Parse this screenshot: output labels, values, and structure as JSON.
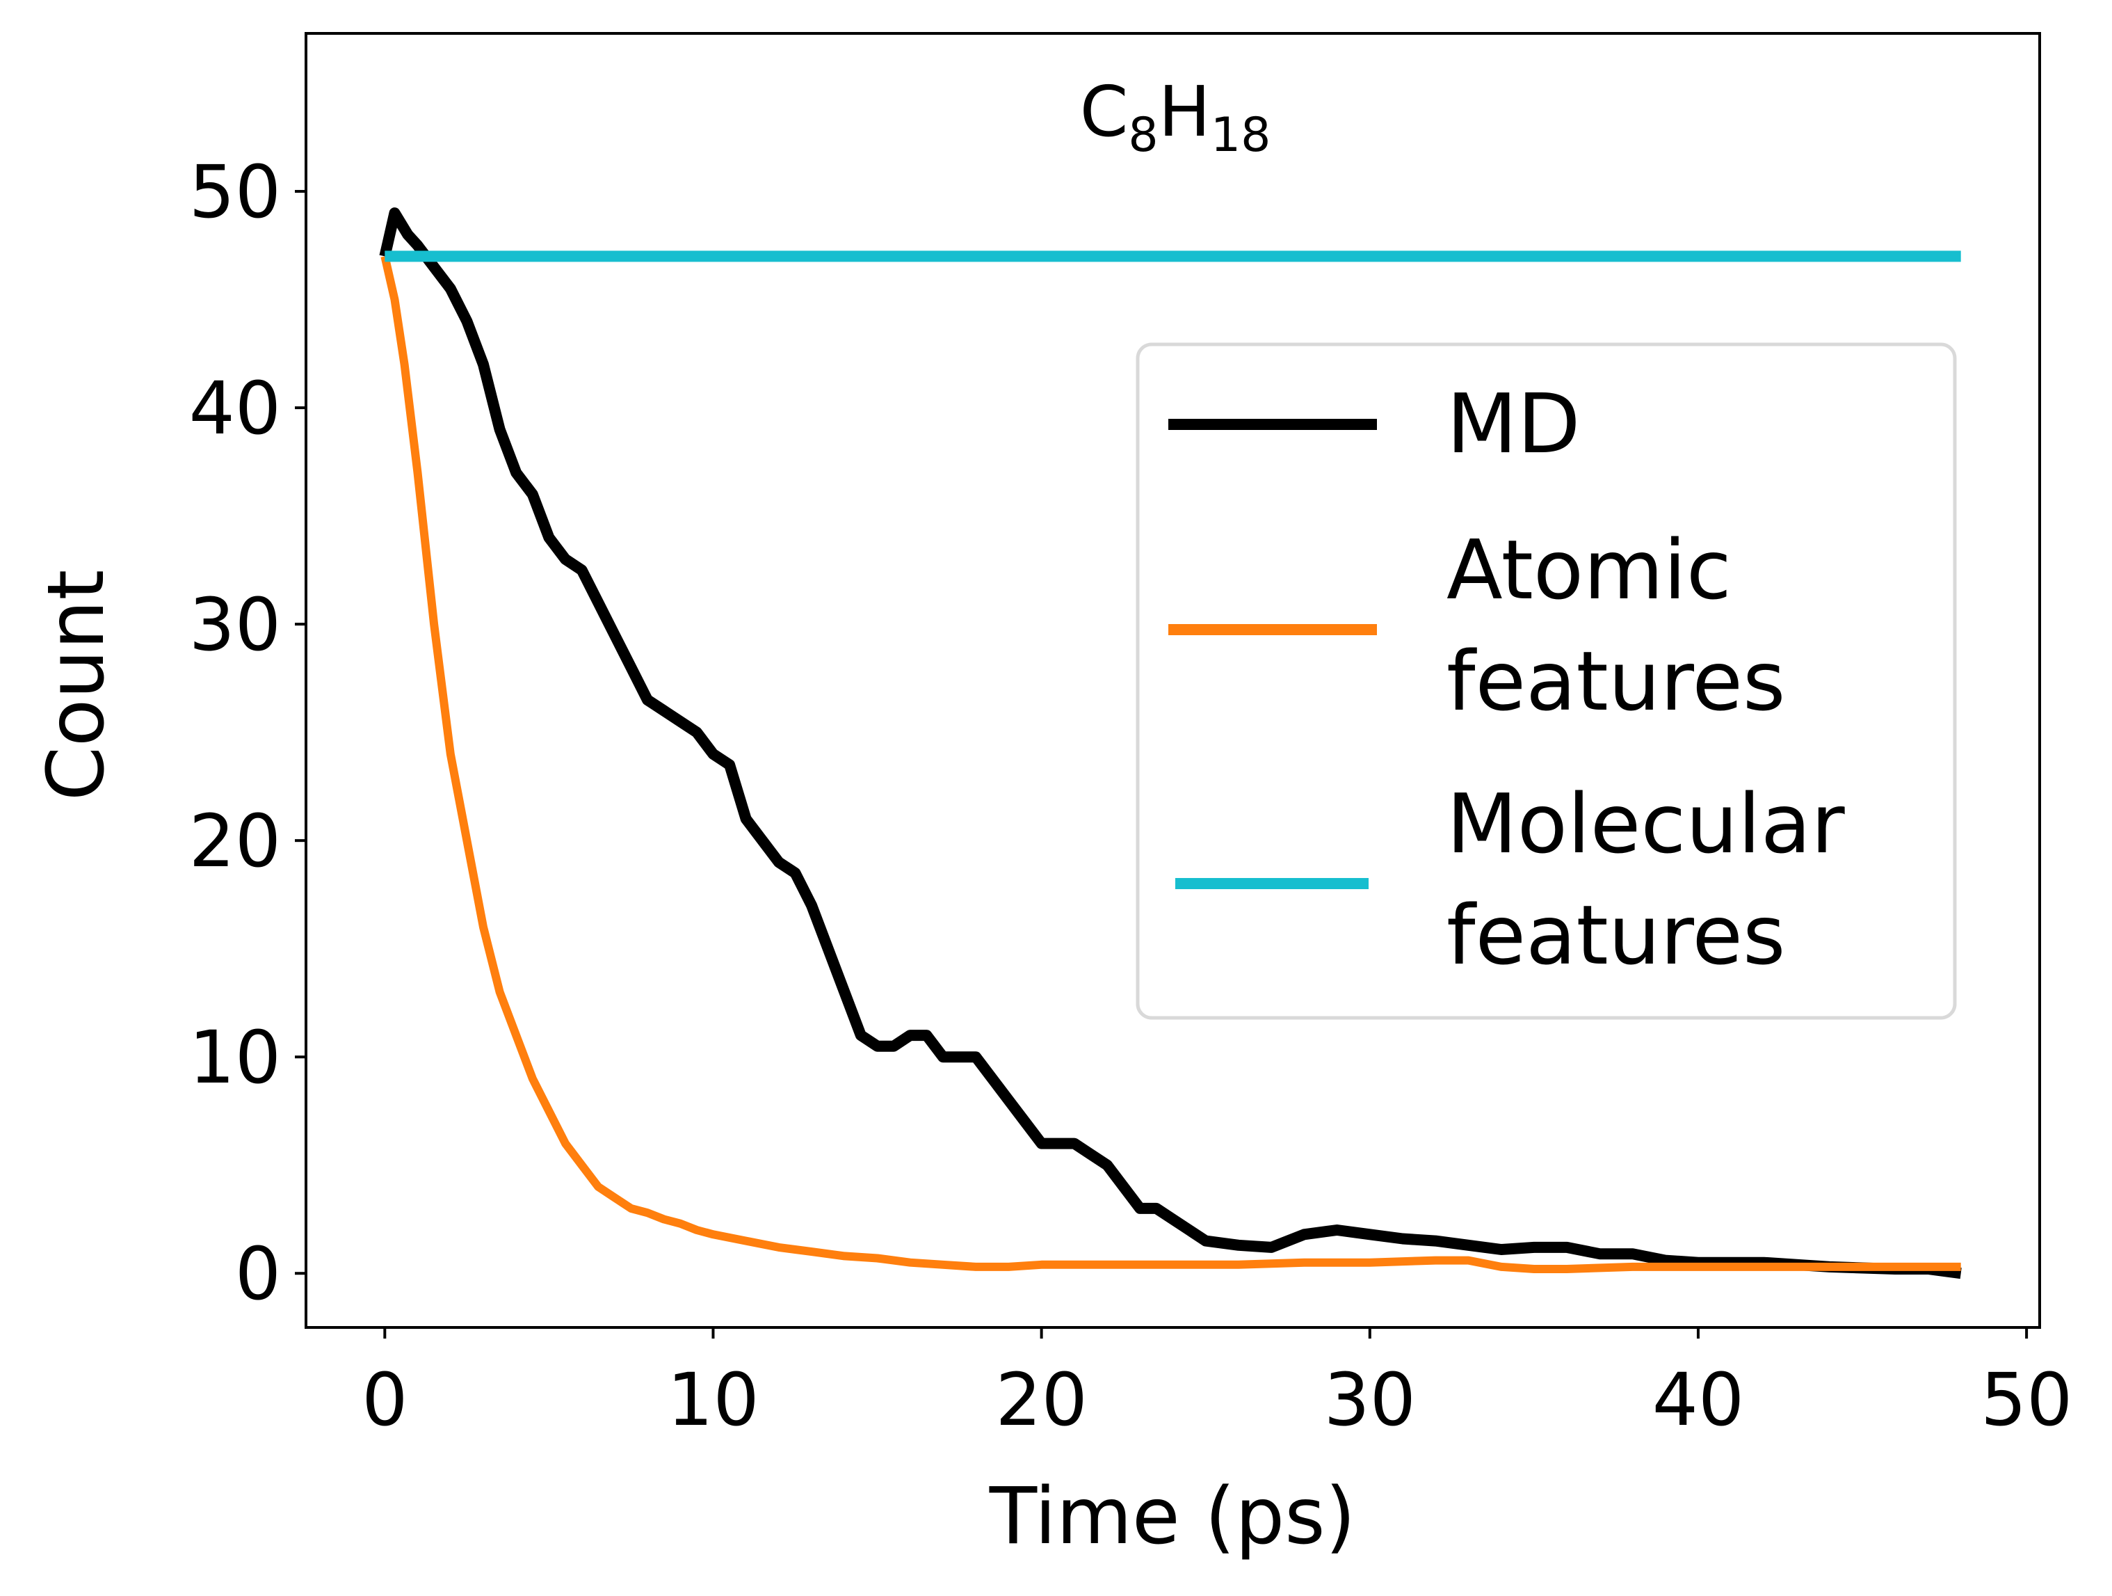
{
  "chart_data": {
    "type": "line",
    "title": "C8H18",
    "title_parts": {
      "c": "C",
      "c_sub": "8",
      "h": "H",
      "h_sub": "18"
    },
    "xlabel": "Time (ps)",
    "ylabel": "Count",
    "xlim": [
      -2.4,
      50.4
    ],
    "ylim": [
      -2.5,
      57.3
    ],
    "xticks": [
      0,
      10,
      20,
      30,
      40,
      50
    ],
    "yticks": [
      0,
      10,
      20,
      30,
      40,
      50
    ],
    "grid": false,
    "legend_position": "center-right",
    "series": [
      {
        "name": "MD",
        "color": "#000000",
        "x": [
          0,
          0.3,
          0.7,
          1.0,
          1.5,
          2.0,
          2.5,
          3.0,
          3.5,
          4.0,
          4.5,
          5.0,
          5.5,
          6.0,
          6.5,
          7.0,
          7.5,
          8.0,
          8.5,
          9.0,
          9.5,
          10.0,
          10.5,
          11.0,
          11.5,
          12.0,
          12.5,
          13.0,
          13.5,
          14.0,
          14.5,
          15.0,
          15.5,
          16.0,
          16.5,
          17.0,
          17.5,
          18.0,
          18.5,
          19.0,
          19.5,
          20.0,
          20.5,
          21.0,
          21.5,
          22.0,
          22.5,
          23.0,
          23.5,
          24.0,
          24.5,
          25.0,
          26.0,
          27.0,
          28.0,
          29.0,
          30.0,
          31.0,
          32.0,
          33.0,
          34.0,
          35.0,
          36.0,
          37.0,
          38.0,
          39.0,
          40.0,
          42.0,
          44.0,
          46.0,
          47.0,
          48.0
        ],
        "values": [
          47,
          49,
          48,
          47.5,
          46.5,
          45.5,
          44,
          42,
          39,
          37,
          36,
          34,
          33,
          32.5,
          31,
          29.5,
          28,
          26.5,
          26,
          25.5,
          25,
          24,
          23.5,
          21,
          20,
          19,
          18.5,
          17,
          15,
          13,
          11,
          10.5,
          10.5,
          11,
          11,
          10,
          10,
          10,
          9,
          8,
          7,
          6,
          6,
          6,
          5.5,
          5,
          4,
          3,
          3,
          2.5,
          2,
          1.5,
          1.3,
          1.2,
          1.8,
          2,
          1.8,
          1.6,
          1.5,
          1.3,
          1.1,
          1.2,
          1.2,
          0.9,
          0.9,
          0.6,
          0.5,
          0.5,
          0.3,
          0.2,
          0.2,
          0.0
        ]
      },
      {
        "name": "Atomic\nfeatures",
        "color": "#ff7f0e",
        "x": [
          0,
          0.3,
          0.6,
          1.0,
          1.5,
          2.0,
          2.5,
          3.0,
          3.5,
          4.0,
          4.5,
          5.0,
          5.5,
          6.0,
          6.5,
          7.0,
          7.5,
          8.0,
          8.5,
          9.0,
          9.5,
          10.0,
          11.0,
          12.0,
          13.0,
          14.0,
          15.0,
          16.0,
          17.0,
          18.0,
          19.0,
          20.0,
          22.0,
          24.0,
          26.0,
          28.0,
          30.0,
          32.0,
          33.0,
          34.0,
          35.0,
          36.0,
          38.0,
          40.0,
          42.0,
          44.0,
          46.0,
          48.0
        ],
        "values": [
          47,
          45,
          42,
          37,
          30,
          24,
          20,
          16,
          13,
          11,
          9,
          7.5,
          6,
          5,
          4,
          3.5,
          3,
          2.8,
          2.5,
          2.3,
          2.0,
          1.8,
          1.5,
          1.2,
          1.0,
          0.8,
          0.7,
          0.5,
          0.4,
          0.3,
          0.3,
          0.4,
          0.4,
          0.4,
          0.4,
          0.5,
          0.5,
          0.6,
          0.6,
          0.3,
          0.2,
          0.2,
          0.3,
          0.3,
          0.3,
          0.3,
          0.3,
          0.3
        ]
      },
      {
        "name": "Molecular\nfeatures",
        "color": "#17becf",
        "x": [
          0,
          48
        ],
        "values": [
          47,
          47
        ]
      }
    ]
  }
}
